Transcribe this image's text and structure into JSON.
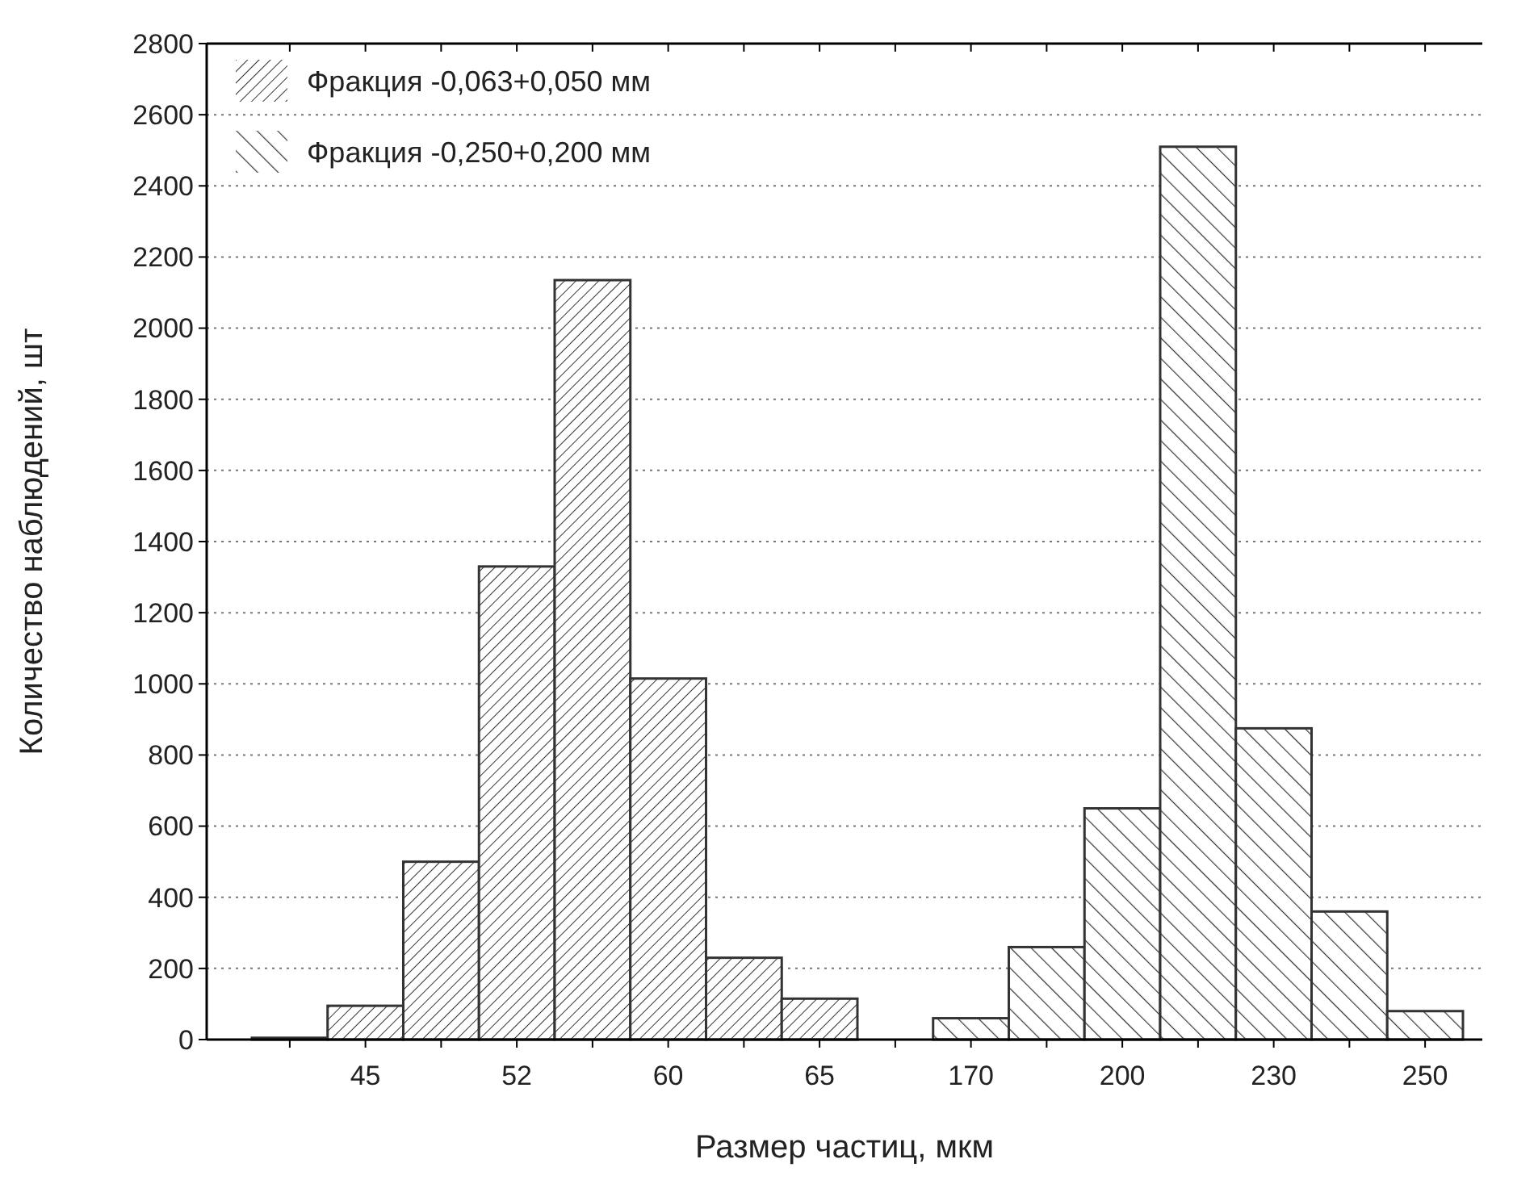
{
  "chart_data": {
    "type": "bar",
    "xlabel": "Размер частиц, мкм",
    "ylabel": "Количество наблюдений, шт",
    "categories": [
      null,
      "45",
      null,
      "52",
      null,
      "60",
      null,
      "65",
      null,
      "170",
      null,
      "200",
      null,
      "230",
      null,
      "250"
    ],
    "series": [
      {
        "name": "Фракция -0,063+0,050 мм",
        "color": "#333333",
        "values": [
          5,
          95,
          500,
          1330,
          2135,
          1015,
          230,
          115,
          null,
          null,
          null,
          null,
          null,
          null,
          null,
          null
        ]
      },
      {
        "name": "Фракция -0,250+0,200 мм",
        "color": "#333333",
        "values": [
          null,
          null,
          null,
          null,
          null,
          null,
          null,
          null,
          null,
          60,
          260,
          650,
          2510,
          875,
          360,
          80
        ]
      }
    ],
    "ylim": [
      0,
      2800
    ],
    "yticks": [
      0,
      200,
      400,
      600,
      800,
      1000,
      1200,
      1400,
      1600,
      1800,
      2000,
      2200,
      2400,
      2600,
      2800
    ],
    "grid": "y",
    "legend": "top left"
  }
}
